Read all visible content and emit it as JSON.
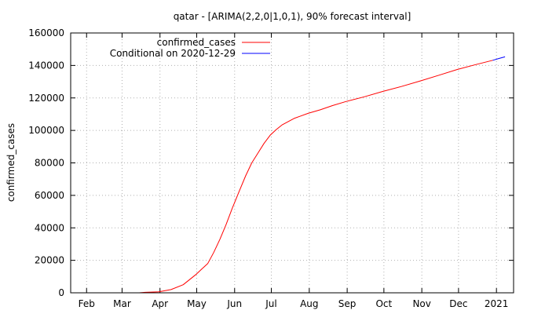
{
  "chart_data": {
    "type": "line",
    "title": "qatar -  [ARIMA(2,2,0|1,0,1), 90% forecast interval]",
    "xlabel": "",
    "ylabel": "confirmed_cases",
    "ylim": [
      0,
      160000
    ],
    "yticks": [
      0,
      20000,
      40000,
      60000,
      80000,
      100000,
      120000,
      140000,
      160000
    ],
    "xlim": [
      "2020-01-19",
      "2021-01-15"
    ],
    "xticks": [
      {
        "date": "2020-02-01",
        "label": "Feb"
      },
      {
        "date": "2020-03-01",
        "label": "Mar"
      },
      {
        "date": "2020-04-01",
        "label": "Apr"
      },
      {
        "date": "2020-05-01",
        "label": "May"
      },
      {
        "date": "2020-06-01",
        "label": "Jun"
      },
      {
        "date": "2020-07-01",
        "label": "Jul"
      },
      {
        "date": "2020-08-01",
        "label": "Aug"
      },
      {
        "date": "2020-09-01",
        "label": "Sep"
      },
      {
        "date": "2020-10-01",
        "label": "Oct"
      },
      {
        "date": "2020-11-01",
        "label": "Nov"
      },
      {
        "date": "2020-12-01",
        "label": "Dec"
      },
      {
        "date": "2021-01-01",
        "label": "2021"
      }
    ],
    "grid": true,
    "legend_position": "top-left",
    "series": [
      {
        "name": "confirmed_cases",
        "color": "#ff0000",
        "points": [
          {
            "x": "2020-03-15",
            "y": 0
          },
          {
            "x": "2020-03-20",
            "y": 300
          },
          {
            "x": "2020-03-31",
            "y": 600
          },
          {
            "x": "2020-04-10",
            "y": 2000
          },
          {
            "x": "2020-04-20",
            "y": 5000
          },
          {
            "x": "2020-04-30",
            "y": 11000
          },
          {
            "x": "2020-05-10",
            "y": 18000
          },
          {
            "x": "2020-05-15",
            "y": 25000
          },
          {
            "x": "2020-05-20",
            "y": 33000
          },
          {
            "x": "2020-05-25",
            "y": 42000
          },
          {
            "x": "2020-05-30",
            "y": 52000
          },
          {
            "x": "2020-06-05",
            "y": 63000
          },
          {
            "x": "2020-06-10",
            "y": 72000
          },
          {
            "x": "2020-06-15",
            "y": 80000
          },
          {
            "x": "2020-06-20",
            "y": 86000
          },
          {
            "x": "2020-06-25",
            "y": 92000
          },
          {
            "x": "2020-06-30",
            "y": 97000
          },
          {
            "x": "2020-07-05",
            "y": 100500
          },
          {
            "x": "2020-07-10",
            "y": 103500
          },
          {
            "x": "2020-07-20",
            "y": 107500
          },
          {
            "x": "2020-07-31",
            "y": 110500
          },
          {
            "x": "2020-08-10",
            "y": 112700
          },
          {
            "x": "2020-08-20",
            "y": 115300
          },
          {
            "x": "2020-08-31",
            "y": 117800
          },
          {
            "x": "2020-09-15",
            "y": 120700
          },
          {
            "x": "2020-09-30",
            "y": 124000
          },
          {
            "x": "2020-10-15",
            "y": 127000
          },
          {
            "x": "2020-10-31",
            "y": 130500
          },
          {
            "x": "2020-11-15",
            "y": 134000
          },
          {
            "x": "2020-11-30",
            "y": 137500
          },
          {
            "x": "2020-12-15",
            "y": 140500
          },
          {
            "x": "2020-12-29",
            "y": 143200
          }
        ]
      },
      {
        "name": "Conditional on 2020-12-29",
        "color": "#0000ff",
        "points": [
          {
            "x": "2020-12-29",
            "y": 143200
          },
          {
            "x": "2021-01-03",
            "y": 144300
          },
          {
            "x": "2021-01-08",
            "y": 145300
          }
        ]
      }
    ]
  }
}
